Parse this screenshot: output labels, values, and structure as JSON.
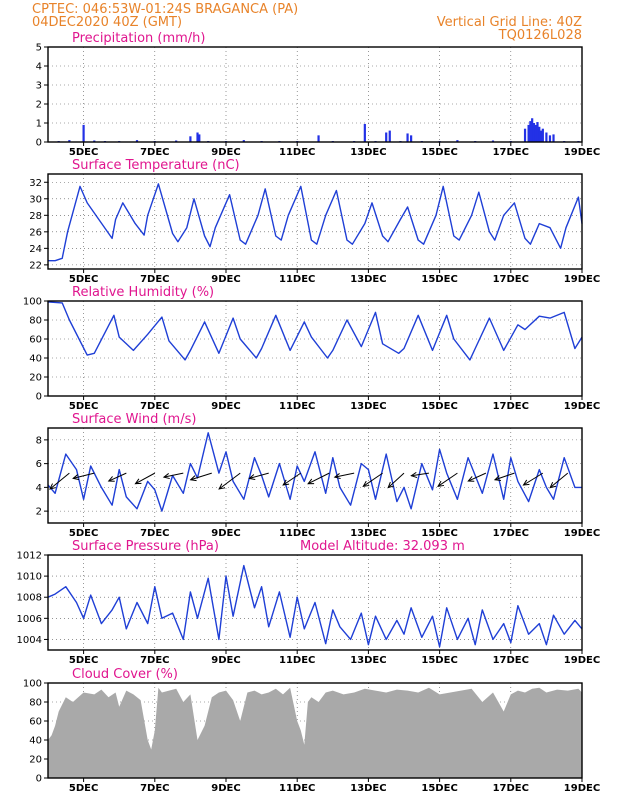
{
  "header": {
    "line1_left": "CPTEC:   046:53W-01:24S   BRAGANCA (PA)",
    "line2_left": "04DEC2020 40Z (GMT)",
    "line1_right": "Vertical Grid Line: 40Z",
    "line2_right": "TQ0126L028"
  },
  "colors": {
    "series": "#1f3fd6",
    "bars": "#2331e6",
    "cloud": "#a9a9a9",
    "title": "#e0168f",
    "header": "#e8832a"
  },
  "x_axis": {
    "ticks": [
      "5DEC",
      "7DEC",
      "9DEC",
      "11DEC",
      "13DEC",
      "15DEC",
      "17DEC",
      "19DEC"
    ],
    "range_days": [
      4,
      19
    ]
  },
  "chart_data": [
    {
      "id": "precip",
      "type": "bar",
      "title": "Precipitation (mm/h)",
      "ylim": [
        0,
        5
      ],
      "yticks": [
        "0",
        "1",
        "2",
        "3",
        "4",
        "5"
      ],
      "x": [
        4.3,
        4.6,
        5.0,
        5.3,
        5.6,
        6.0,
        6.5,
        7.0,
        7.6,
        8.0,
        8.2,
        8.25,
        8.5,
        9.0,
        9.5,
        10.0,
        10.5,
        11.0,
        11.6,
        12.0,
        12.6,
        12.9,
        13.2,
        13.5,
        13.6,
        13.9,
        14.1,
        14.2,
        14.5,
        15.0,
        15.5,
        16.0,
        16.5,
        17.0,
        17.4,
        17.5,
        17.55,
        17.6,
        17.65,
        17.7,
        17.75,
        17.8,
        17.85,
        17.9,
        18.0,
        18.1,
        18.2,
        18.5,
        18.9
      ],
      "values": [
        0.05,
        0.1,
        0.9,
        0.08,
        0.05,
        0.05,
        0.1,
        0.05,
        0.08,
        0.3,
        0.5,
        0.4,
        0.05,
        0.05,
        0.1,
        0.05,
        0.05,
        0.05,
        0.35,
        0.05,
        0.05,
        0.95,
        0.05,
        0.5,
        0.6,
        0.05,
        0.45,
        0.35,
        0.05,
        0.05,
        0.1,
        0.05,
        0.08,
        0.05,
        0.7,
        0.9,
        1.1,
        1.25,
        1.0,
        0.9,
        1.05,
        0.8,
        0.6,
        0.7,
        0.5,
        0.35,
        0.4,
        0.05,
        0.05
      ]
    },
    {
      "id": "temp",
      "type": "line",
      "title": "Surface Temperature (nC)",
      "ylim": [
        21.5,
        33
      ],
      "yticks": [
        "22",
        "24",
        "26",
        "28",
        "30",
        "32"
      ],
      "x": [
        4.0,
        4.2,
        4.4,
        4.55,
        4.9,
        5.1,
        5.8,
        5.9,
        6.1,
        6.45,
        6.7,
        6.8,
        7.1,
        7.5,
        7.65,
        7.9,
        8.1,
        8.4,
        8.55,
        8.7,
        9.1,
        9.4,
        9.55,
        9.9,
        10.1,
        10.4,
        10.55,
        10.75,
        11.1,
        11.4,
        11.55,
        11.8,
        12.1,
        12.4,
        12.55,
        12.9,
        13.1,
        13.4,
        13.55,
        13.9,
        14.1,
        14.4,
        14.55,
        14.9,
        15.1,
        15.4,
        15.55,
        15.9,
        16.1,
        16.4,
        16.55,
        16.8,
        17.1,
        17.4,
        17.55,
        17.8,
        18.1,
        18.4,
        18.55,
        18.9,
        19.0
      ],
      "values": [
        22.5,
        22.5,
        22.8,
        26.0,
        31.5,
        29.5,
        25.2,
        27.5,
        29.5,
        27.0,
        25.6,
        28.0,
        31.8,
        25.8,
        24.8,
        26.5,
        30.0,
        25.5,
        24.2,
        26.5,
        30.5,
        25.0,
        24.5,
        28.0,
        31.2,
        25.5,
        25.0,
        28.0,
        31.5,
        25.0,
        24.5,
        28.0,
        31.0,
        25.0,
        24.5,
        27.0,
        29.5,
        25.5,
        24.8,
        27.5,
        29.0,
        25.0,
        24.5,
        28.0,
        31.5,
        25.5,
        25.0,
        28.0,
        30.8,
        26.0,
        25.0,
        28.0,
        29.5,
        25.2,
        24.5,
        27.0,
        26.5,
        24.0,
        26.5,
        30.2,
        27.0
      ]
    },
    {
      "id": "rh",
      "type": "line",
      "title": "Relative Humidity (%)",
      "ylim": [
        0,
        100
      ],
      "yticks": [
        "0",
        "20",
        "40",
        "60",
        "80",
        "100"
      ],
      "x": [
        4.0,
        4.4,
        4.6,
        5.1,
        5.3,
        5.85,
        6.0,
        6.4,
        6.8,
        7.2,
        7.4,
        7.85,
        8.0,
        8.4,
        8.8,
        9.2,
        9.4,
        9.85,
        10.0,
        10.4,
        10.8,
        11.2,
        11.4,
        11.85,
        12.0,
        12.4,
        12.8,
        13.2,
        13.4,
        13.85,
        14.0,
        14.4,
        14.8,
        15.2,
        15.4,
        15.85,
        16.0,
        16.4,
        16.8,
        17.2,
        17.4,
        17.8,
        18.1,
        18.5,
        18.8,
        19.0
      ],
      "values": [
        99,
        98,
        80,
        43,
        45,
        85,
        62,
        48,
        65,
        83,
        58,
        38,
        48,
        78,
        45,
        82,
        60,
        40,
        50,
        85,
        48,
        78,
        62,
        40,
        48,
        80,
        52,
        88,
        55,
        45,
        50,
        85,
        48,
        85,
        60,
        38,
        50,
        82,
        48,
        75,
        70,
        84,
        82,
        88,
        50,
        62
      ]
    },
    {
      "id": "wind",
      "type": "line",
      "title": "Surface Wind (m/s)",
      "ylim": [
        1,
        9
      ],
      "yticks": [
        "2",
        "4",
        "6",
        "8"
      ],
      "x": [
        4.0,
        4.2,
        4.5,
        4.8,
        5.0,
        5.2,
        5.5,
        5.8,
        6.0,
        6.2,
        6.5,
        6.8,
        7.0,
        7.2,
        7.5,
        7.8,
        8.0,
        8.2,
        8.5,
        8.8,
        9.0,
        9.2,
        9.5,
        9.8,
        10.0,
        10.2,
        10.5,
        10.8,
        11.0,
        11.2,
        11.5,
        11.8,
        12.0,
        12.2,
        12.5,
        12.8,
        13.0,
        13.2,
        13.5,
        13.8,
        14.0,
        14.2,
        14.5,
        14.8,
        15.0,
        15.2,
        15.5,
        15.8,
        16.0,
        16.2,
        16.5,
        16.8,
        17.0,
        17.2,
        17.5,
        17.8,
        18.0,
        18.2,
        18.5,
        18.8,
        19.0
      ],
      "values": [
        4.2,
        3.5,
        6.8,
        5.5,
        3.0,
        5.8,
        4.0,
        2.5,
        5.5,
        3.2,
        2.2,
        4.5,
        3.8,
        2.0,
        5.0,
        3.5,
        6.0,
        4.8,
        8.6,
        5.2,
        7.0,
        4.5,
        3.0,
        6.5,
        5.0,
        3.2,
        6.0,
        3.0,
        5.8,
        4.5,
        7.0,
        3.5,
        6.5,
        4.0,
        2.5,
        6.0,
        5.5,
        3.0,
        6.8,
        2.8,
        4.0,
        2.2,
        6.0,
        3.8,
        7.2,
        5.2,
        3.0,
        6.5,
        5.0,
        3.5,
        6.8,
        3.0,
        6.5,
        4.5,
        2.8,
        5.5,
        4.0,
        3.0,
        6.5,
        4.0,
        4.0
      ],
      "arrows": [
        {
          "x": 4.6,
          "dx": -0.55,
          "dy": -1.2
        },
        {
          "x": 5.3,
          "dx": -0.6,
          "dy": -0.4
        },
        {
          "x": 6.2,
          "dx": -0.5,
          "dy": -0.6
        },
        {
          "x": 7.0,
          "dx": -0.55,
          "dy": -0.8
        },
        {
          "x": 7.8,
          "dx": -0.55,
          "dy": -0.3
        },
        {
          "x": 8.6,
          "dx": -0.6,
          "dy": -0.5
        },
        {
          "x": 9.4,
          "dx": -0.6,
          "dy": -1.2
        },
        {
          "x": 10.2,
          "dx": -0.55,
          "dy": -0.4
        },
        {
          "x": 11.1,
          "dx": -0.5,
          "dy": -0.9
        },
        {
          "x": 11.9,
          "dx": -0.6,
          "dy": -0.8
        },
        {
          "x": 12.6,
          "dx": -0.55,
          "dy": -0.3
        },
        {
          "x": 13.4,
          "dx": -0.55,
          "dy": -1.0
        },
        {
          "x": 14.0,
          "dx": -0.45,
          "dy": -1.1
        },
        {
          "x": 14.7,
          "dx": -0.5,
          "dy": -0.2
        },
        {
          "x": 15.5,
          "dx": -0.55,
          "dy": -1.0
        },
        {
          "x": 16.3,
          "dx": -0.5,
          "dy": -0.6
        },
        {
          "x": 17.1,
          "dx": -0.55,
          "dy": -0.5
        },
        {
          "x": 17.9,
          "dx": -0.55,
          "dy": -0.9
        },
        {
          "x": 18.6,
          "dx": -0.5,
          "dy": -1.1
        }
      ]
    },
    {
      "id": "pressure",
      "type": "line",
      "title": "Surface Pressure (hPa)",
      "annotation": "Model Altitude: 32.093 m",
      "ylim": [
        1003,
        1012
      ],
      "yticks": [
        "1004",
        "1006",
        "1008",
        "1010",
        "1012"
      ],
      "x": [
        4.0,
        4.2,
        4.5,
        4.8,
        5.0,
        5.2,
        5.5,
        5.8,
        6.0,
        6.2,
        6.5,
        6.8,
        7.0,
        7.2,
        7.5,
        7.8,
        8.0,
        8.2,
        8.5,
        8.8,
        9.0,
        9.2,
        9.5,
        9.8,
        10.0,
        10.2,
        10.5,
        10.8,
        11.0,
        11.2,
        11.5,
        11.8,
        12.0,
        12.2,
        12.5,
        12.8,
        13.0,
        13.2,
        13.5,
        13.8,
        14.0,
        14.2,
        14.5,
        14.8,
        15.0,
        15.2,
        15.5,
        15.8,
        16.0,
        16.2,
        16.5,
        16.8,
        17.0,
        17.2,
        17.5,
        17.8,
        18.0,
        18.2,
        18.5,
        18.8,
        19.0
      ],
      "values": [
        1008.0,
        1008.3,
        1009.0,
        1007.5,
        1006.0,
        1008.2,
        1005.5,
        1006.8,
        1008.0,
        1005.0,
        1007.5,
        1005.5,
        1009.0,
        1006.0,
        1006.5,
        1004.0,
        1008.5,
        1006.0,
        1009.8,
        1004.0,
        1010.0,
        1006.2,
        1011.0,
        1007.0,
        1009.0,
        1005.2,
        1008.5,
        1004.2,
        1008.0,
        1005.0,
        1007.5,
        1003.6,
        1006.8,
        1005.2,
        1004.0,
        1006.5,
        1003.5,
        1006.2,
        1004.0,
        1005.8,
        1004.5,
        1007.0,
        1004.2,
        1006.2,
        1003.3,
        1007.0,
        1004.0,
        1006.0,
        1003.5,
        1006.8,
        1004.0,
        1005.5,
        1003.7,
        1007.2,
        1004.5,
        1005.5,
        1003.5,
        1006.3,
        1004.5,
        1005.8,
        1005.0
      ]
    },
    {
      "id": "cloud",
      "type": "area",
      "title": "Cloud Cover (%)",
      "ylim": [
        0,
        100
      ],
      "yticks": [
        "0",
        "20",
        "40",
        "60",
        "80",
        "100"
      ],
      "x": [
        4.0,
        4.1,
        4.2,
        4.3,
        4.5,
        4.7,
        5.0,
        5.3,
        5.5,
        5.7,
        5.9,
        6.0,
        6.2,
        6.4,
        6.6,
        6.8,
        6.9,
        7.0,
        7.1,
        7.2,
        7.4,
        7.6,
        7.8,
        8.0,
        8.2,
        8.4,
        8.6,
        8.8,
        9.0,
        9.2,
        9.4,
        9.6,
        9.8,
        10.0,
        10.2,
        10.4,
        10.6,
        10.8,
        11.0,
        11.1,
        11.2,
        11.3,
        11.4,
        11.6,
        11.8,
        12.0,
        12.3,
        12.6,
        12.9,
        13.2,
        13.5,
        13.8,
        14.1,
        14.4,
        14.7,
        15.0,
        15.3,
        15.6,
        15.9,
        16.2,
        16.5,
        16.8,
        17.0,
        17.2,
        17.4,
        17.6,
        17.8,
        18.0,
        18.3,
        18.6,
        18.9,
        19.0
      ],
      "values": [
        40,
        45,
        55,
        70,
        85,
        80,
        90,
        88,
        93,
        85,
        90,
        75,
        92,
        88,
        82,
        40,
        30,
        50,
        95,
        90,
        92,
        94,
        80,
        88,
        40,
        55,
        85,
        90,
        92,
        82,
        60,
        90,
        92,
        88,
        90,
        94,
        88,
        95,
        60,
        50,
        35,
        80,
        85,
        80,
        90,
        92,
        88,
        90,
        94,
        92,
        90,
        93,
        92,
        90,
        95,
        88,
        90,
        92,
        94,
        80,
        90,
        70,
        88,
        92,
        90,
        94,
        95,
        90,
        93,
        92,
        94,
        90
      ]
    }
  ]
}
